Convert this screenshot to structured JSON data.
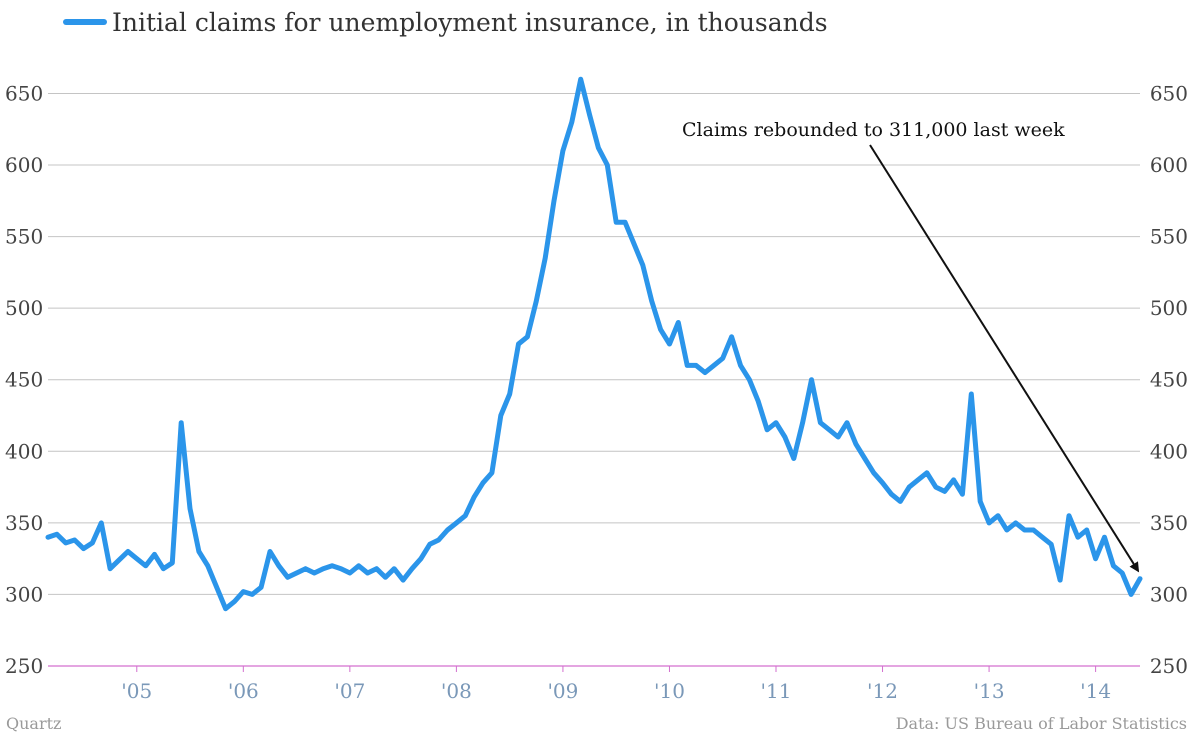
{
  "chart_data": {
    "type": "line",
    "title": "",
    "series": [
      {
        "name": "Initial claims for unemployment insurance, in thousands",
        "color": "#2b95ea",
        "points": [
          [
            "2004-03",
            340
          ],
          [
            "2004-04",
            342
          ],
          [
            "2004-05",
            336
          ],
          [
            "2004-06",
            338
          ],
          [
            "2004-07",
            332
          ],
          [
            "2004-08",
            336
          ],
          [
            "2004-09",
            350
          ],
          [
            "2004-10",
            318
          ],
          [
            "2004-11",
            324
          ],
          [
            "2004-12",
            330
          ],
          [
            "2005-01",
            325
          ],
          [
            "2005-02",
            320
          ],
          [
            "2005-03",
            328
          ],
          [
            "2005-04",
            318
          ],
          [
            "2005-05",
            322
          ],
          [
            "2005-06",
            420
          ],
          [
            "2005-07",
            360
          ],
          [
            "2005-08",
            330
          ],
          [
            "2005-09",
            320
          ],
          [
            "2005-10",
            305
          ],
          [
            "2005-11",
            290
          ],
          [
            "2005-12",
            295
          ],
          [
            "2006-01",
            302
          ],
          [
            "2006-02",
            300
          ],
          [
            "2006-03",
            305
          ],
          [
            "2006-04",
            330
          ],
          [
            "2006-05",
            320
          ],
          [
            "2006-06",
            312
          ],
          [
            "2006-07",
            315
          ],
          [
            "2006-08",
            318
          ],
          [
            "2006-09",
            315
          ],
          [
            "2006-10",
            318
          ],
          [
            "2006-11",
            320
          ],
          [
            "2006-12",
            318
          ],
          [
            "2007-01",
            315
          ],
          [
            "2007-02",
            320
          ],
          [
            "2007-03",
            315
          ],
          [
            "2007-04",
            318
          ],
          [
            "2007-05",
            312
          ],
          [
            "2007-06",
            318
          ],
          [
            "2007-07",
            310
          ],
          [
            "2007-08",
            318
          ],
          [
            "2007-09",
            325
          ],
          [
            "2007-10",
            335
          ],
          [
            "2007-11",
            338
          ],
          [
            "2007-12",
            345
          ],
          [
            "2008-01",
            350
          ],
          [
            "2008-02",
            355
          ],
          [
            "2008-03",
            368
          ],
          [
            "2008-04",
            378
          ],
          [
            "2008-05",
            385
          ],
          [
            "2008-06",
            425
          ],
          [
            "2008-07",
            440
          ],
          [
            "2008-08",
            475
          ],
          [
            "2008-09",
            480
          ],
          [
            "2008-10",
            505
          ],
          [
            "2008-11",
            535
          ],
          [
            "2008-12",
            575
          ],
          [
            "2009-01",
            610
          ],
          [
            "2009-02",
            630
          ],
          [
            "2009-03",
            660
          ],
          [
            "2009-04",
            635
          ],
          [
            "2009-05",
            612
          ],
          [
            "2009-06",
            600
          ],
          [
            "2009-07",
            560
          ],
          [
            "2009-08",
            560
          ],
          [
            "2009-09",
            545
          ],
          [
            "2009-10",
            530
          ],
          [
            "2009-11",
            505
          ],
          [
            "2009-12",
            485
          ],
          [
            "2010-01",
            475
          ],
          [
            "2010-02",
            490
          ],
          [
            "2010-03",
            460
          ],
          [
            "2010-04",
            460
          ],
          [
            "2010-05",
            455
          ],
          [
            "2010-06",
            460
          ],
          [
            "2010-07",
            465
          ],
          [
            "2010-08",
            480
          ],
          [
            "2010-09",
            460
          ],
          [
            "2010-10",
            450
          ],
          [
            "2010-11",
            435
          ],
          [
            "2010-12",
            415
          ],
          [
            "2011-01",
            420
          ],
          [
            "2011-02",
            410
          ],
          [
            "2011-03",
            395
          ],
          [
            "2011-04",
            420
          ],
          [
            "2011-05",
            450
          ],
          [
            "2011-06",
            420
          ],
          [
            "2011-07",
            415
          ],
          [
            "2011-08",
            410
          ],
          [
            "2011-09",
            420
          ],
          [
            "2011-10",
            405
          ],
          [
            "2011-11",
            395
          ],
          [
            "2011-12",
            385
          ],
          [
            "2012-01",
            378
          ],
          [
            "2012-02",
            370
          ],
          [
            "2012-03",
            365
          ],
          [
            "2012-04",
            375
          ],
          [
            "2012-05",
            380
          ],
          [
            "2012-06",
            385
          ],
          [
            "2012-07",
            375
          ],
          [
            "2012-08",
            372
          ],
          [
            "2012-09",
            380
          ],
          [
            "2012-10",
            370
          ],
          [
            "2012-11",
            440
          ],
          [
            "2012-12",
            365
          ],
          [
            "2013-01",
            350
          ],
          [
            "2013-02",
            355
          ],
          [
            "2013-03",
            345
          ],
          [
            "2013-04",
            350
          ],
          [
            "2013-05",
            345
          ],
          [
            "2013-06",
            345
          ],
          [
            "2013-07",
            340
          ],
          [
            "2013-08",
            335
          ],
          [
            "2013-09",
            310
          ],
          [
            "2013-10",
            355
          ],
          [
            "2013-11",
            340
          ],
          [
            "2013-12",
            345
          ],
          [
            "2014-01",
            325
          ],
          [
            "2014-02",
            340
          ],
          [
            "2014-03",
            320
          ],
          [
            "2014-04",
            315
          ],
          [
            "2014-05",
            300
          ],
          [
            "2014-06",
            311
          ]
        ]
      }
    ],
    "ylim": [
      250,
      665
    ],
    "yticks": [
      250,
      300,
      350,
      400,
      450,
      500,
      550,
      600,
      650
    ],
    "xticks": [
      {
        "date": "2005-01",
        "label": "'05"
      },
      {
        "date": "2006-01",
        "label": "'06"
      },
      {
        "date": "2007-01",
        "label": "'07"
      },
      {
        "date": "2008-01",
        "label": "'08"
      },
      {
        "date": "2009-01",
        "label": "'09"
      },
      {
        "date": "2010-01",
        "label": "'10"
      },
      {
        "date": "2011-01",
        "label": "'11"
      },
      {
        "date": "2012-01",
        "label": "'12"
      },
      {
        "date": "2013-01",
        "label": "'13"
      },
      {
        "date": "2014-01",
        "label": "'14"
      }
    ],
    "xlim": [
      "2004-03",
      "2014-06"
    ],
    "grid": true,
    "legend_position": "top-left",
    "annotation": {
      "text": "Claims rebounded to 311,000 last week",
      "target": [
        "2014-06",
        311
      ]
    }
  },
  "footer": {
    "source_left": "Quartz",
    "source_right": "Data: US Bureau of Labor Statistics"
  }
}
